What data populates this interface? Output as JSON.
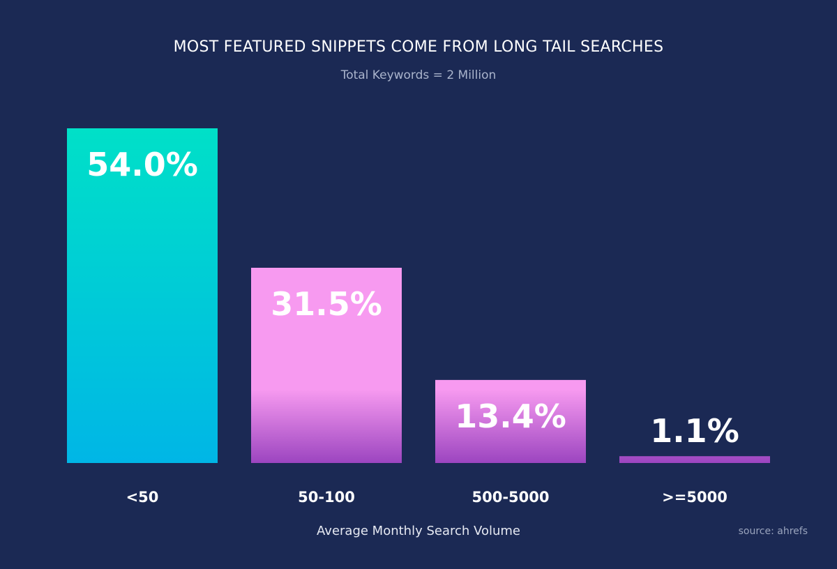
{
  "chart_data": {
    "type": "bar",
    "title": "MOST FEATURED SNIPPETS COME FROM LONG TAIL SEARCHES",
    "subtitle": "Total Keywords = 2 Million",
    "xlabel": "Average Monthly Search Volume",
    "ylabel": "",
    "categories": [
      "<50",
      "50-100",
      "500-5000",
      ">=5000"
    ],
    "values": [
      54.0,
      31.5,
      13.4,
      1.1
    ],
    "data_labels": [
      "54.0%",
      "31.5%",
      "13.4%",
      "1.1%"
    ],
    "ylim": [
      0,
      54.0
    ],
    "grid": false,
    "legend": "none",
    "colors": {
      "background": "#1b2954",
      "bar_1_top": "#00e0c8",
      "bar_1_bottom": "#00b6e6",
      "bar_pink_top": "#f79af0",
      "bar_pink_bottom": "#9c45c0"
    },
    "source": "source: ahrefs"
  }
}
